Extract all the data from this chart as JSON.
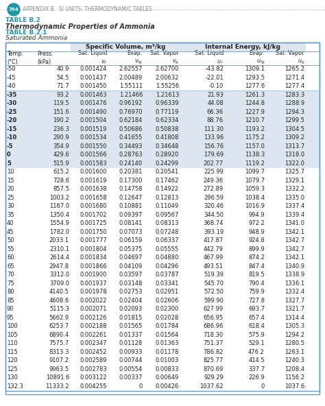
{
  "page_num": "794",
  "appendix_text": "APPENDIX B   SI UNITS: THERMODYNAMIC TABLES",
  "table_label": "TABLE B.2",
  "table_title": "Thermodynamic Properties of Ammonia",
  "subtable_label": "TABLE B.2.1",
  "subtable_title": "Saturated Ammonia",
  "header1_left": "Specific Volume, m³/kg",
  "header1_right": "Internal Energy, kJ/kg",
  "col_headers": [
    "Temp.\n(°C)",
    "Press.\n(kPa)",
    "Sat. Liquid\nv_f",
    "Evap.\nv_fg",
    "Sat. Vapor\nv_g",
    "Sat. Liquid\nu_f",
    "Evap.\nu_fg",
    "Sat. Vapor\nu_g"
  ],
  "rows": [
    [
      "-50",
      "40.9",
      "0.001424",
      "2.62557",
      "2.62700",
      "-43.82",
      "1309.1",
      "1265.2"
    ],
    [
      "-45",
      "54.5",
      "0.001437",
      "2.00489",
      "2.00632",
      "-22.01",
      "1293.5",
      "1271.4"
    ],
    [
      "-40",
      "71.7",
      "0.001450",
      "1.55111",
      "1.55256",
      "-0.10",
      "1277.6",
      "1277.4"
    ],
    [
      "-35",
      "93.2",
      "0.001463",
      "1.21466",
      "1.21613",
      "21.93",
      "1261.3",
      "1283.3"
    ],
    [
      "-30",
      "119.5",
      "0.001476",
      "0.96192",
      "0.96339",
      "44.08",
      "1244.8",
      "1288.9"
    ],
    [
      "-25",
      "151.6",
      "0.001490",
      "0.76970",
      "0.77119",
      "66.36",
      "1227.9",
      "1294.3"
    ],
    [
      "-20",
      "190.2",
      "0.001504",
      "0.62184",
      "0.62334",
      "88.76",
      "1210.7",
      "1299.5"
    ],
    [
      "-15",
      "236.3",
      "0.001519",
      "0.50686",
      "0.50838",
      "111.30",
      "1193.2",
      "1304.5"
    ],
    [
      "-10",
      "290.9",
      "0.001534",
      "0.41655",
      "0.41808",
      "133.96",
      "1175.2",
      "1309.2"
    ],
    [
      "-5",
      "354.9",
      "0.001550",
      "0.34493",
      "0.34648",
      "156.76",
      "1157.0",
      "1313.7"
    ],
    [
      "0",
      "429.6",
      "0.001566",
      "0.28763",
      "0.28920",
      "179.69",
      "1138.3",
      "1318.0"
    ],
    [
      "5",
      "515.9",
      "0.001583",
      "0.24140",
      "0.24299",
      "202.77",
      "1119.2",
      "1322.0"
    ],
    [
      "10",
      "615.2",
      "0.001600",
      "0.20381",
      "0.20541",
      "225.99",
      "1099.7",
      "1325.7"
    ],
    [
      "15",
      "728.6",
      "0.001619",
      "0.17300",
      "0.17462",
      "249.36",
      "1079.7",
      "1329.1"
    ],
    [
      "20",
      "857.5",
      "0.001638",
      "0.14758",
      "0.14922",
      "272.89",
      "1059.3",
      "1332.2"
    ],
    [
      "25",
      "1003.2",
      "0.001658",
      "0.12647",
      "0.12813",
      "296.59",
      "1038.4",
      "1335.0"
    ],
    [
      "30",
      "1167.0",
      "0.001680",
      "0.10881",
      "0.11049",
      "320.46",
      "1016.9",
      "1337.4"
    ],
    [
      "35",
      "1350.4",
      "0.001702",
      "0.09397",
      "0.09567",
      "344.50",
      "994.9",
      "1339.4"
    ],
    [
      "40",
      "1554.9",
      "0.001725",
      "0.08141",
      "0.08313",
      "368.74",
      "972.2",
      "1341.0"
    ],
    [
      "45",
      "1782.0",
      "0.001750",
      "0.07073",
      "0.07248",
      "393.19",
      "948.9",
      "1342.1"
    ],
    [
      "50",
      "2033.1",
      "0.001777",
      "0.06159",
      "0.06337",
      "417.87",
      "924.8",
      "1342.7"
    ],
    [
      "55",
      "2310.1",
      "0.001804",
      "0.05375",
      "0.05555",
      "442.79",
      "899.9",
      "1342.7"
    ],
    [
      "60",
      "2614.4",
      "0.001834",
      "0.04697",
      "0.04880",
      "467.99",
      "874.2",
      "1342.1"
    ],
    [
      "65",
      "2947.8",
      "0.001866",
      "0.04109",
      "0.04296",
      "493.51",
      "847.4",
      "1340.9"
    ],
    [
      "70",
      "3312.0",
      "0.001900",
      "0.03597",
      "0.03787",
      "519.39",
      "819.5",
      "1338.9"
    ],
    [
      "75",
      "3709.0",
      "0.001937",
      "0.03148",
      "0.03341",
      "545.70",
      "790.4",
      "1336.1"
    ],
    [
      "80",
      "4140.5",
      "0.001978",
      "0.02753",
      "0.02951",
      "572.50",
      "759.9",
      "1332.4"
    ],
    [
      "85",
      "4608.6",
      "0.002022",
      "0.02404",
      "0.02606",
      "599.90",
      "727.8",
      "1327.7"
    ],
    [
      "90",
      "5115.3",
      "0.002071",
      "0.02093",
      "0.02300",
      "627.99",
      "693.7",
      "1321.7"
    ],
    [
      "95",
      "5662.9",
      "0.002126",
      "0.01815",
      "0.02028",
      "656.95",
      "657.4",
      "1314.4"
    ],
    [
      "100",
      "6253.7",
      "0.002188",
      "0.01565",
      "0.01784",
      "686.96",
      "618.4",
      "1305.3"
    ],
    [
      "105",
      "6890.4",
      "0.002261",
      "0.01337",
      "0.01564",
      "718.30",
      "575.9",
      "1294.2"
    ],
    [
      "110",
      "7575.7",
      "0.002347",
      "0.01128",
      "0.01363",
      "751.37",
      "529.1",
      "1280.5"
    ],
    [
      "115",
      "8313.3",
      "0.002452",
      "0.00933",
      "0.01178",
      "786.82",
      "476.2",
      "1263.1"
    ],
    [
      "120",
      "9107.2",
      "0.002589",
      "0.00744",
      "0.01003",
      "825.77",
      "414.5",
      "1240.3"
    ],
    [
      "125",
      "9963.5",
      "0.002783",
      "0.00554",
      "0.00833",
      "870.69",
      "337.7",
      "1208.4"
    ],
    [
      "130",
      "10891.6",
      "0.003122",
      "0.00337",
      "0.00649",
      "929.29",
      "226.9",
      "1156.2"
    ],
    [
      "132.3",
      "11333.2",
      "0.004255",
      "0",
      "0.00426",
      "1037.62",
      "0",
      "1037.6"
    ]
  ],
  "highlighted_rows": [
    3,
    4,
    5,
    6,
    7,
    8,
    9,
    10,
    11
  ],
  "bg_color": "#ffffff",
  "table_border_color": "#5b9bd5",
  "header_bg": "#dce6f1",
  "highlight_bg": "#dce6f1",
  "page_circle_color": "#2196a8",
  "table_label_color": "#2196a8",
  "appendix_color": "#888888",
  "dot_line_color": "#bbbbbb"
}
